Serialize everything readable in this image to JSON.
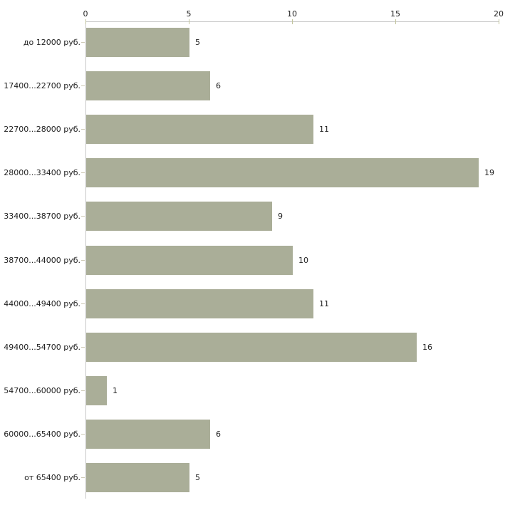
{
  "chart_data": {
    "type": "bar",
    "orientation": "horizontal",
    "categories": [
      "до 12000 руб.",
      "17400...22700 руб.",
      "22700...28000 руб.",
      "28000...33400 руб.",
      "33400...38700 руб.",
      "38700...44000 руб.",
      "44000...49400 руб.",
      "49400...54700 руб.",
      "54700...60000 руб.",
      "60000...65400 руб.",
      "от 65400 руб."
    ],
    "values": [
      5,
      6,
      11,
      19,
      9,
      10,
      11,
      16,
      1,
      6,
      5
    ],
    "value_labels": [
      "5",
      "6",
      "11",
      "19",
      "9",
      "10",
      "11",
      "16",
      "1",
      "6",
      "5"
    ],
    "x_ticks": [
      0,
      5,
      10,
      15,
      20
    ],
    "x_tick_labels": [
      "0",
      "5",
      "10",
      "15",
      "20"
    ],
    "xlim": [
      0,
      20
    ],
    "grid": false,
    "legend": false,
    "colors": {
      "bar": "#aaae98",
      "axis_line": "#c6c6c6",
      "axis_tick": "#c2c49c",
      "category_tick": "#ccc8b4",
      "text": "#222222"
    }
  }
}
